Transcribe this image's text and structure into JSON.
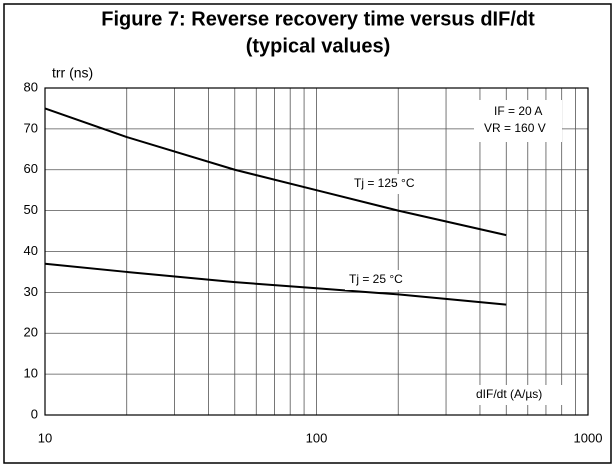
{
  "chart_data": {
    "type": "line",
    "title": "Figure 7: Reverse recovery time versus dIF/dt",
    "subtitle": "(typical values)",
    "y_label": "trr (ns)",
    "x_label": "dIF/dt (A/µs)",
    "annotations": [
      "IF = 20 A",
      "VR = 160 V"
    ],
    "x": [
      10,
      20,
      50,
      100,
      200,
      500
    ],
    "series": [
      {
        "name": "Tj = 125 °C",
        "color": "#000000",
        "values": [
          75,
          68,
          60,
          55,
          50,
          44
        ]
      },
      {
        "name": "Tj = 25 °C",
        "color": "#000000",
        "values": [
          37,
          35,
          32.5,
          31,
          29.5,
          27
        ]
      }
    ],
    "xlim": [
      10,
      1000
    ],
    "xticks": [
      10,
      100,
      1000
    ],
    "x_minor_ticks": [
      20,
      30,
      40,
      50,
      60,
      70,
      80,
      90,
      200,
      300,
      400,
      500,
      600,
      700,
      800,
      900
    ],
    "x_log": true,
    "ylim": [
      0,
      80
    ],
    "yticks": [
      0,
      10,
      20,
      30,
      40,
      50,
      60,
      70,
      80
    ],
    "grid": true
  }
}
